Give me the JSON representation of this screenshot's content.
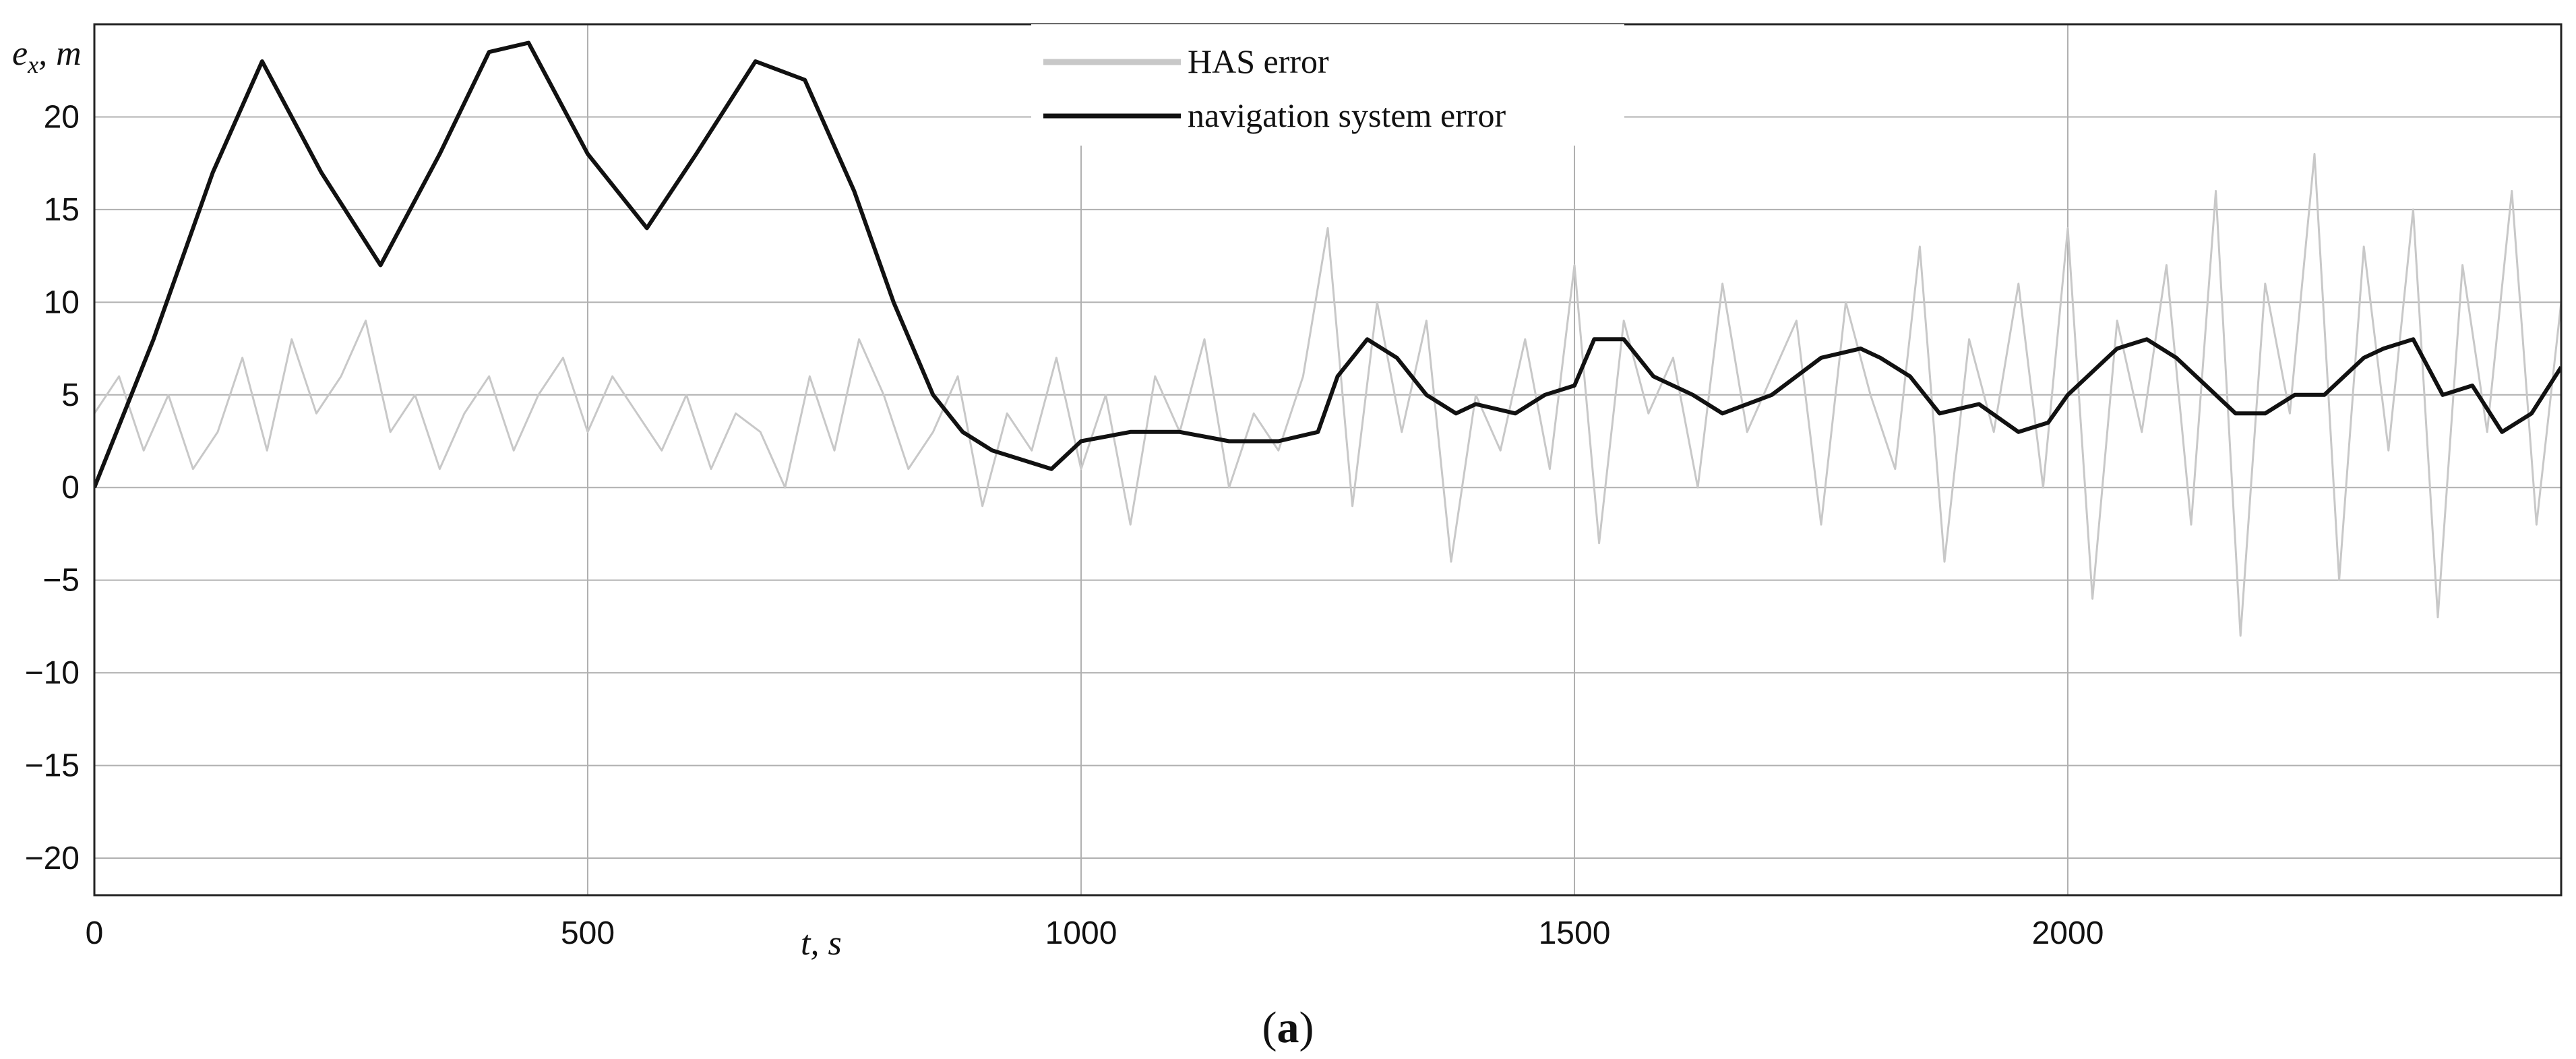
{
  "chart_data": {
    "type": "line",
    "xlabel": "t, s",
    "ylabel": "e_x, m",
    "ylabel_main": "e",
    "ylabel_sub": "x",
    "ylabel_rest": ", m",
    "xlim": [
      0,
      2500
    ],
    "ylim": [
      -22,
      25
    ],
    "x_ticks": [
      0,
      500,
      1000,
      1500,
      2000
    ],
    "x_tick_labels": [
      "0",
      "500",
      "1000",
      "1500",
      "2000"
    ],
    "y_ticks": [
      -20,
      -15,
      -10,
      -5,
      0,
      5,
      10,
      15,
      20
    ],
    "y_tick_labels": [
      "−20",
      "−15",
      "−10",
      "−5",
      "0",
      "5",
      "10",
      "15",
      "20"
    ],
    "grid": true,
    "legend_position": "top-center",
    "caption_open": "(",
    "caption_letter": "a",
    "caption_close": ")",
    "series": [
      {
        "name": "HAS error",
        "color": "#c8c8c8",
        "x": [
          0,
          25,
          50,
          75,
          100,
          125,
          150,
          175,
          200,
          225,
          250,
          275,
          300,
          325,
          350,
          375,
          400,
          425,
          450,
          475,
          500,
          525,
          550,
          575,
          600,
          625,
          650,
          675,
          700,
          725,
          750,
          775,
          800,
          825,
          850,
          875,
          900,
          925,
          950,
          975,
          1000,
          1025,
          1050,
          1075,
          1100,
          1125,
          1150,
          1175,
          1200,
          1225,
          1250,
          1275,
          1300,
          1325,
          1350,
          1375,
          1400,
          1425,
          1450,
          1475,
          1500,
          1525,
          1550,
          1575,
          1600,
          1625,
          1650,
          1675,
          1700,
          1725,
          1750,
          1775,
          1800,
          1825,
          1850,
          1875,
          1900,
          1925,
          1950,
          1975,
          2000,
          2025,
          2050,
          2075,
          2100,
          2125,
          2150,
          2175,
          2200,
          2225,
          2250,
          2275,
          2300,
          2325,
          2350,
          2375,
          2400,
          2425,
          2450,
          2475,
          2500
        ],
        "y": [
          4,
          6,
          2,
          5,
          1,
          3,
          7,
          2,
          8,
          4,
          6,
          9,
          3,
          5,
          1,
          4,
          6,
          2,
          5,
          7,
          3,
          6,
          4,
          2,
          5,
          1,
          4,
          3,
          0,
          6,
          2,
          8,
          5,
          1,
          3,
          6,
          -1,
          4,
          2,
          7,
          1,
          5,
          -2,
          6,
          3,
          8,
          0,
          4,
          2,
          6,
          14,
          -1,
          10,
          3,
          9,
          -4,
          5,
          2,
          8,
          1,
          12,
          -3,
          9,
          4,
          7,
          0,
          11,
          3,
          6,
          9,
          -2,
          10,
          5,
          1,
          13,
          -4,
          8,
          3,
          11,
          0,
          14,
          -6,
          9,
          3,
          12,
          -2,
          16,
          -8,
          11,
          4,
          18,
          -5,
          13,
          2,
          15,
          -7,
          12,
          3,
          16,
          -2,
          10
        ]
      },
      {
        "name": "navigation system error",
        "color": "#111111",
        "x": [
          0,
          60,
          120,
          170,
          230,
          290,
          350,
          400,
          440,
          500,
          560,
          610,
          670,
          720,
          770,
          810,
          850,
          880,
          910,
          940,
          970,
          1000,
          1050,
          1100,
          1150,
          1200,
          1240,
          1260,
          1290,
          1320,
          1350,
          1380,
          1400,
          1440,
          1470,
          1500,
          1520,
          1550,
          1580,
          1620,
          1650,
          1700,
          1750,
          1790,
          1810,
          1840,
          1870,
          1910,
          1950,
          1980,
          2000,
          2050,
          2080,
          2110,
          2140,
          2170,
          2200,
          2230,
          2260,
          2300,
          2320,
          2350,
          2380,
          2410,
          2440,
          2470,
          2500
        ],
        "y": [
          0,
          8,
          17,
          23,
          17,
          12,
          18,
          23.5,
          24,
          18,
          14,
          18,
          23,
          22,
          16,
          10,
          5,
          3,
          2,
          1.5,
          1,
          2.5,
          3,
          3,
          2.5,
          2.5,
          3,
          6,
          8,
          7,
          5,
          4,
          4.5,
          4,
          5,
          5.5,
          8,
          8,
          6,
          5,
          4,
          5,
          7,
          7.5,
          7,
          6,
          4,
          4.5,
          3,
          3.5,
          5,
          7.5,
          8,
          7,
          5.5,
          4,
          4,
          5,
          5,
          7,
          7.5,
          8,
          5,
          5.5,
          3,
          4,
          6.5
        ]
      }
    ]
  }
}
